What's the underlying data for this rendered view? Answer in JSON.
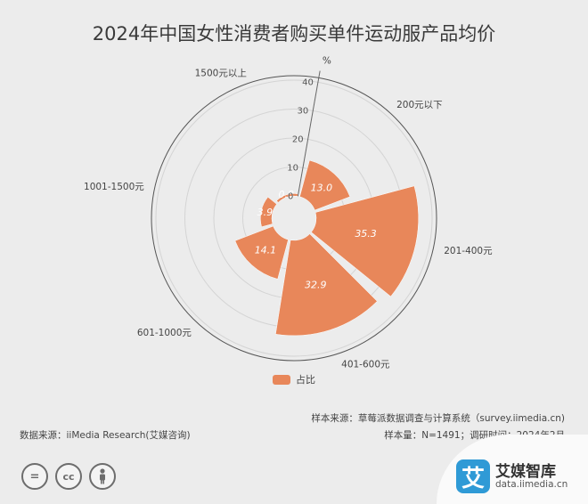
{
  "title": "2024年中国女性消费者购买单件运动服产品均价",
  "chart_data": {
    "type": "polar-bar",
    "unit": "%",
    "categories": [
      "200元以下",
      "201-400元",
      "401-600元",
      "601-1000元",
      "1001-1500元",
      "1500元以上"
    ],
    "series": [
      {
        "name": "占比",
        "values": [
          13.0,
          35.3,
          32.9,
          14.1,
          3.9,
          0.8
        ]
      }
    ],
    "radial_ticks": [
      10,
      20,
      30,
      40
    ],
    "rlim": [
      0,
      40
    ],
    "legend_position": "bottom",
    "color": "#e8875a"
  },
  "footer": {
    "sample_source": "样本来源：草莓派数据调查与计算系统（survey.iimedia.cn)",
    "sample_size": "样本量：N=1491；调研时间：2024年2月",
    "data_source": "数据来源：iiMedia Research(艾媒咨询)"
  },
  "brand": {
    "logo_char": "艾",
    "name": "艾媒智库",
    "url": "data.iimedia.cn"
  },
  "license_icons": [
    "equals-icon",
    "cc-icon",
    "person-icon"
  ]
}
